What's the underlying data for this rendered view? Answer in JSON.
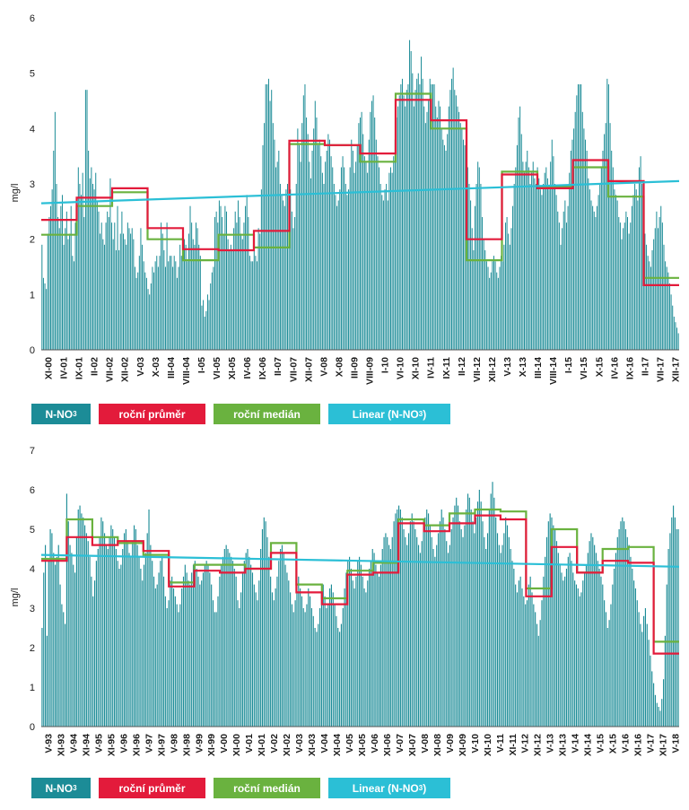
{
  "colors": {
    "bars": "#1c8c97",
    "mean": "#e31b3b",
    "median": "#6ab23f",
    "trend": "#2bbfd6"
  },
  "chart_data": [
    {
      "type": "bar",
      "ylabel": "mg/l",
      "ylim": [
        0,
        6
      ],
      "yticks": [
        "0",
        "1",
        "2",
        "3",
        "4",
        "5",
        "6"
      ],
      "x_tick_labels": [
        "XI-00",
        "IV-01",
        "IX-01",
        "II-02",
        "VII-02",
        "XII-02",
        "V-03",
        "X-03",
        "III-04",
        "VIII-04",
        "I-05",
        "VI-05",
        "XI-05",
        "IV-06",
        "IX-06",
        "II-07",
        "VII-07",
        "XII-07",
        "V-08",
        "X-08",
        "III-09",
        "VIII-09",
        "I-10",
        "VI-10",
        "XI-10",
        "IV-11",
        "IX-11",
        "II-12",
        "VII-12",
        "XII-12",
        "V-13",
        "X-13",
        "III-14",
        "VIII-14",
        "I-15",
        "VI-15",
        "X-15",
        "IV-16",
        "IX-16",
        "II-17",
        "VII-17",
        "XII-17"
      ],
      "legend": [
        {
          "label": "N-NO",
          "sub": "3",
          "suffix": ""
        },
        {
          "label": "roční průměr",
          "sub": "",
          "suffix": ""
        },
        {
          "label": "roční medián",
          "sub": "",
          "suffix": ""
        },
        {
          "label": "Linear (N-NO",
          "sub": "3",
          "suffix": ")"
        }
      ],
      "series": [
        {
          "values": [
            1.9,
            1.3,
            1.2,
            1.1,
            2.1,
            2.4,
            2.6,
            2.9,
            3.6,
            4.3,
            3.0,
            2.4,
            2.2,
            2.6,
            2.8,
            1.9,
            2.2,
            2.5,
            2.0,
            2.1,
            2.6,
            1.7,
            1.6,
            2.3,
            2.7,
            3.3,
            3.0,
            2.8,
            3.2,
            2.4,
            4.7,
            4.7,
            3.6,
            3.1,
            3.3,
            3.0,
            2.9,
            3.2,
            2.7,
            2.5,
            2.1,
            2.3,
            2.0,
            1.9,
            2.3,
            2.5,
            2.4,
            3.1,
            2.3,
            2.0,
            2.3,
            1.8,
            2.6,
            1.8,
            2.1,
            2.5,
            2.1,
            2.0,
            1.9,
            2.3,
            2.2,
            2.1,
            2.2,
            2.0,
            1.5,
            1.3,
            1.4,
            1.7,
            2.2,
            1.9,
            1.6,
            1.4,
            1.3,
            1.1,
            1.0,
            1.2,
            1.5,
            1.4,
            1.6,
            1.7,
            1.5,
            1.7,
            2.3,
            2.1,
            1.8,
            1.5,
            2.3,
            1.6,
            1.7,
            1.7,
            1.5,
            1.7,
            1.6,
            1.3,
            1.5,
            1.9,
            1.7,
            2.2,
            2.0,
            1.9,
            1.6,
            2.1,
            2.6,
            2.3,
            2.0,
            1.9,
            2.3,
            2.2,
            1.9,
            1.7,
            0.8,
            0.9,
            0.6,
            0.7,
            1.0,
            0.9,
            1.2,
            1.4,
            1.5,
            2.4,
            2.5,
            2.3,
            2.7,
            2.6,
            2.4,
            2.1,
            2.6,
            2.5,
            2.0,
            1.8,
            1.9,
            1.8,
            2.2,
            2.5,
            2.3,
            2.7,
            2.4,
            2.1,
            2.0,
            2.3,
            2.6,
            2.8,
            2.4,
            1.7,
            1.6,
            1.6,
            2.0,
            1.7,
            1.6,
            2.2,
            2.1,
            2.9,
            3.7,
            4.1,
            4.8,
            4.8,
            4.9,
            4.5,
            4.7,
            4.1,
            3.8,
            3.3,
            3.4,
            3.6,
            3.0,
            2.8,
            2.7,
            2.6,
            2.9,
            3.0,
            3.1,
            2.9,
            2.5,
            2.2,
            2.4,
            3.0,
            4.0,
            3.7,
            3.4,
            4.1,
            4.6,
            4.8,
            4.2,
            3.9,
            3.4,
            3.1,
            3.6,
            4.0,
            4.5,
            4.2,
            3.7,
            3.8,
            3.5,
            3.2,
            3.0,
            3.4,
            3.6,
            3.9,
            3.8,
            3.5,
            3.3,
            3.0,
            2.8,
            2.6,
            2.7,
            2.9,
            3.3,
            3.5,
            3.3,
            3.0,
            2.8,
            2.9,
            3.3,
            3.8,
            3.6,
            3.2,
            3.4,
            3.7,
            4.1,
            4.2,
            4.3,
            3.9,
            3.5,
            3.4,
            3.2,
            3.8,
            4.3,
            4.5,
            4.6,
            4.2,
            3.8,
            3.5,
            3.3,
            3.0,
            2.8,
            2.7,
            2.9,
            3.0,
            2.7,
            3.2,
            3.3,
            3.2,
            3.5,
            3.8,
            4.2,
            4.4,
            4.6,
            4.8,
            4.9,
            4.6,
            4.4,
            4.7,
            4.8,
            5.6,
            5.4,
            5.0,
            4.4,
            4.7,
            4.9,
            5.0,
            4.8,
            5.3,
            4.9,
            4.4,
            4.1,
            4.3,
            4.5,
            4.9,
            4.8,
            4.8,
            4.8,
            4.4,
            4.2,
            4.5,
            4.4,
            4.0,
            3.8,
            3.7,
            3.6,
            3.9,
            4.4,
            4.7,
            4.9,
            5.1,
            4.7,
            4.6,
            4.4,
            4.3,
            4.1,
            4.0,
            3.8,
            3.7,
            3.5,
            3.3,
            3.0,
            2.7,
            2.2,
            1.8,
            2.6,
            3.0,
            3.4,
            3.3,
            3.0,
            2.4,
            2.0,
            1.8,
            1.6,
            1.5,
            1.3,
            1.4,
            1.6,
            1.7,
            1.6,
            1.4,
            1.3,
            1.5,
            1.7,
            1.6,
            1.9,
            2.3,
            2.4,
            2.1,
            1.9,
            2.2,
            2.6,
            3.0,
            3.3,
            3.7,
            4.2,
            4.4,
            3.9,
            3.4,
            3.2,
            3.4,
            3.6,
            3.3,
            3.0,
            3.2,
            3.4,
            3.1,
            3.0,
            3.3,
            3.1,
            2.9,
            2.8,
            3.0,
            3.2,
            3.3,
            3.1,
            2.9,
            3.4,
            3.8,
            3.5,
            3.0,
            2.8,
            2.5,
            2.3,
            1.9,
            2.2,
            2.5,
            2.7,
            2.3,
            2.6,
            3.2,
            3.6,
            3.8,
            4.0,
            4.3,
            4.6,
            4.8,
            4.8,
            4.8,
            4.3,
            4.0,
            3.8,
            3.6,
            3.1,
            2.9,
            2.7,
            2.6,
            2.5,
            2.4,
            2.6,
            2.8,
            3.0,
            3.3,
            3.6,
            3.9,
            4.1,
            4.9,
            4.8,
            4.1,
            3.6,
            3.3,
            2.9,
            2.8,
            2.7,
            2.4,
            2.3,
            2.0,
            2.2,
            2.3,
            2.5,
            2.4,
            2.1,
            2.3,
            2.6,
            2.8,
            3.0,
            2.9,
            2.7,
            3.3,
            3.5,
            3.0,
            2.6,
            2.1,
            1.9,
            1.7,
            1.6,
            1.5,
            1.8,
            2.0,
            2.2,
            2.5,
            2.2,
            2.4,
            2.6,
            2.3,
            1.9,
            1.6,
            1.5,
            1.4,
            1.2,
            1.0,
            0.8,
            0.6,
            0.5,
            0.4,
            0.3
          ]
        },
        {
          "name": "",
          "values": [
            2.35,
            2.75,
            2.92,
            2.2,
            1.82,
            1.8,
            2.15,
            3.78,
            3.7,
            3.55,
            4.52,
            4.15,
            2.0,
            3.17,
            2.92,
            3.43,
            3.05,
            1.17
          ]
        },
        {
          "name": "",
          "values": [
            2.08,
            2.6,
            2.85,
            2.0,
            1.62,
            2.08,
            1.85,
            3.72,
            3.7,
            3.4,
            4.63,
            4.0,
            1.62,
            3.22,
            2.95,
            3.3,
            2.77,
            1.3
          ]
        },
        {
          "name": "",
          "values": [
            2.65,
            3.05
          ]
        }
      ]
    },
    {
      "type": "bar",
      "ylabel": "mg/l",
      "ylim": [
        0,
        7
      ],
      "yticks": [
        "0",
        "1",
        "2",
        "3",
        "4",
        "5",
        "6",
        "7"
      ],
      "x_tick_labels": [
        "V-93",
        "XI-93",
        "V-94",
        "XI-94",
        "V-95",
        "XI-95",
        "V-96",
        "XI-96",
        "V-97",
        "XI-97",
        "V-98",
        "XI-98",
        "V-99",
        "XI-99",
        "V-00",
        "XI-00",
        "V-01",
        "XI-01",
        "V-02",
        "XI-02",
        "V-03",
        "XI-03",
        "V-04",
        "XI-04",
        "V-05",
        "XI-05",
        "V-06",
        "XI-06",
        "V-07",
        "XI-07",
        "V-08",
        "XI-08",
        "V-09",
        "XI-09",
        "V-10",
        "XI-10",
        "V-11",
        "XI-11",
        "V-12",
        "XI-12",
        "V-13",
        "XI-13",
        "V-14",
        "XI-14",
        "V-15",
        "X-15",
        "V-16",
        "XI-16",
        "V-17",
        "XI-17",
        "V-18"
      ],
      "legend": [
        {
          "label": "N-NO",
          "sub": "3",
          "suffix": ""
        },
        {
          "label": "roční průměr",
          "sub": "",
          "suffix": ""
        },
        {
          "label": "roční medián",
          "sub": "",
          "suffix": ""
        },
        {
          "label": "Linear (N-NO",
          "sub": "3",
          "suffix": ")"
        }
      ],
      "series": [
        {
          "values": [
            2.5,
            3.9,
            4.6,
            2.3,
            4.2,
            5.0,
            4.9,
            4.4,
            4.1,
            4.3,
            4.6,
            3.6,
            3.1,
            2.9,
            2.6,
            5.9,
            5.2,
            4.6,
            4.4,
            4.1,
            3.9,
            4.8,
            5.5,
            5.6,
            5.4,
            5.3,
            5.1,
            4.9,
            4.7,
            4.3,
            3.8,
            3.3,
            3.7,
            4.2,
            4.5,
            4.8,
            5.3,
            5.2,
            4.9,
            4.6,
            4.5,
            4.8,
            5.1,
            5.0,
            4.8,
            4.5,
            4.2,
            4.0,
            4.1,
            4.5,
            4.9,
            5.0,
            4.7,
            4.4,
            4.3,
            4.7,
            5.1,
            5.0,
            4.6,
            4.3,
            4.0,
            3.7,
            4.1,
            4.4,
            4.9,
            5.5,
            4.6,
            4.2,
            3.8,
            3.5,
            3.6,
            3.9,
            4.2,
            4.3,
            3.8,
            3.3,
            3.0,
            3.2,
            3.7,
            3.8,
            3.5,
            3.3,
            3.1,
            2.9,
            3.1,
            3.5,
            3.8,
            4.1,
            3.9,
            3.7,
            3.6,
            3.9,
            4.1,
            4.2,
            4.0,
            3.8,
            3.6,
            3.7,
            3.9,
            4.1,
            4.2,
            4.1,
            3.9,
            3.6,
            3.2,
            2.9,
            2.9,
            3.3,
            3.8,
            4.1,
            4.3,
            4.5,
            4.6,
            4.5,
            4.4,
            4.3,
            4.2,
            4.0,
            3.8,
            3.2,
            3.0,
            3.4,
            3.9,
            4.2,
            4.4,
            4.5,
            4.3,
            4.1,
            3.9,
            3.6,
            3.4,
            3.2,
            3.7,
            4.5,
            5.0,
            5.3,
            5.2,
            4.8,
            4.3,
            3.8,
            3.4,
            3.2,
            3.5,
            3.8,
            4.2,
            4.5,
            4.6,
            4.4,
            4.1,
            3.9,
            3.7,
            3.4,
            3.1,
            2.9,
            3.2,
            3.6,
            3.8,
            3.5,
            3.3,
            3.0,
            2.9,
            3.1,
            3.5,
            3.3,
            3.0,
            2.8,
            2.5,
            2.4,
            2.6,
            3.0,
            3.4,
            3.6,
            3.3,
            3.0,
            3.1,
            3.5,
            3.6,
            3.4,
            3.1,
            2.8,
            2.5,
            2.4,
            2.6,
            3.0,
            3.5,
            3.9,
            4.2,
            4.3,
            4.0,
            3.7,
            3.5,
            3.8,
            4.2,
            4.3,
            4.1,
            3.8,
            3.5,
            3.4,
            3.7,
            4.0,
            4.2,
            4.5,
            4.4,
            4.1,
            3.9,
            3.8,
            4.1,
            4.5,
            4.8,
            4.9,
            4.8,
            4.6,
            4.5,
            4.8,
            5.2,
            5.4,
            5.5,
            5.6,
            5.5,
            5.3,
            5.0,
            4.8,
            4.6,
            4.9,
            5.2,
            5.4,
            5.2,
            5.0,
            4.8,
            4.6,
            4.4,
            4.7,
            5.0,
            5.3,
            5.5,
            5.4,
            5.1,
            4.8,
            4.5,
            4.3,
            4.6,
            4.9,
            5.2,
            5.5,
            5.3,
            5.0,
            4.7,
            4.4,
            4.6,
            5.0,
            5.3,
            5.6,
            5.8,
            5.6,
            5.2,
            5.0,
            4.8,
            5.1,
            5.5,
            5.9,
            5.8,
            5.5,
            5.2,
            4.9,
            5.3,
            5.7,
            6.0,
            5.7,
            5.2,
            4.8,
            4.5,
            4.9,
            5.5,
            5.9,
            6.2,
            5.8,
            5.3,
            4.9,
            4.6,
            4.4,
            4.6,
            4.9,
            5.3,
            5.1,
            4.8,
            4.5,
            4.2,
            4.0,
            3.6,
            3.4,
            3.7,
            3.8,
            3.5,
            3.3,
            3.1,
            3.2,
            3.6,
            3.8,
            3.4,
            3.1,
            2.9,
            2.6,
            2.3,
            2.7,
            3.2,
            3.8,
            4.3,
            4.8,
            5.2,
            5.4,
            5.3,
            5.1,
            5.0,
            4.7,
            4.4,
            4.1,
            3.9,
            3.7,
            3.8,
            4.0,
            4.3,
            4.4,
            4.2,
            3.9,
            3.7,
            3.6,
            3.5,
            3.3,
            3.4,
            3.7,
            3.9,
            4.1,
            4.4,
            4.7,
            4.9,
            4.8,
            4.6,
            4.4,
            4.2,
            4.0,
            3.8,
            3.6,
            3.2,
            2.9,
            2.5,
            2.7,
            3.1,
            3.6,
            4.0,
            4.4,
            4.8,
            5.0,
            5.2,
            5.3,
            5.2,
            5.0,
            4.8,
            4.6,
            4.3,
            4.0,
            3.7,
            3.5,
            3.2,
            2.9,
            2.6,
            2.4,
            2.8,
            3.0,
            2.6,
            2.2,
            1.8,
            1.4,
            1.1,
            0.8,
            0.6,
            0.5,
            0.4,
            0.7,
            1.2,
            2.3,
            3.6,
            4.5,
            4.9,
            5.3,
            5.6,
            5.3,
            5.0,
            5.0
          ]
        },
        {
          "name": "",
          "values": [
            4.2,
            4.8,
            4.6,
            4.7,
            4.45,
            3.55,
            3.95,
            3.9,
            4.0,
            4.4,
            3.4,
            3.1,
            3.85,
            3.9,
            5.15,
            4.95,
            5.15,
            5.35,
            5.25,
            3.3,
            4.55,
            3.9,
            4.2,
            4.15,
            1.85
          ]
        },
        {
          "name": "",
          "values": [
            4.25,
            5.25,
            4.8,
            4.65,
            4.35,
            3.65,
            4.1,
            4.1,
            4.0,
            4.65,
            3.6,
            3.25,
            3.95,
            4.15,
            5.25,
            5.1,
            5.4,
            5.5,
            5.45,
            3.5,
            5.0,
            3.9,
            4.5,
            4.55,
            2.15
          ]
        },
        {
          "name": "",
          "values": [
            4.35,
            4.05
          ]
        }
      ]
    }
  ]
}
